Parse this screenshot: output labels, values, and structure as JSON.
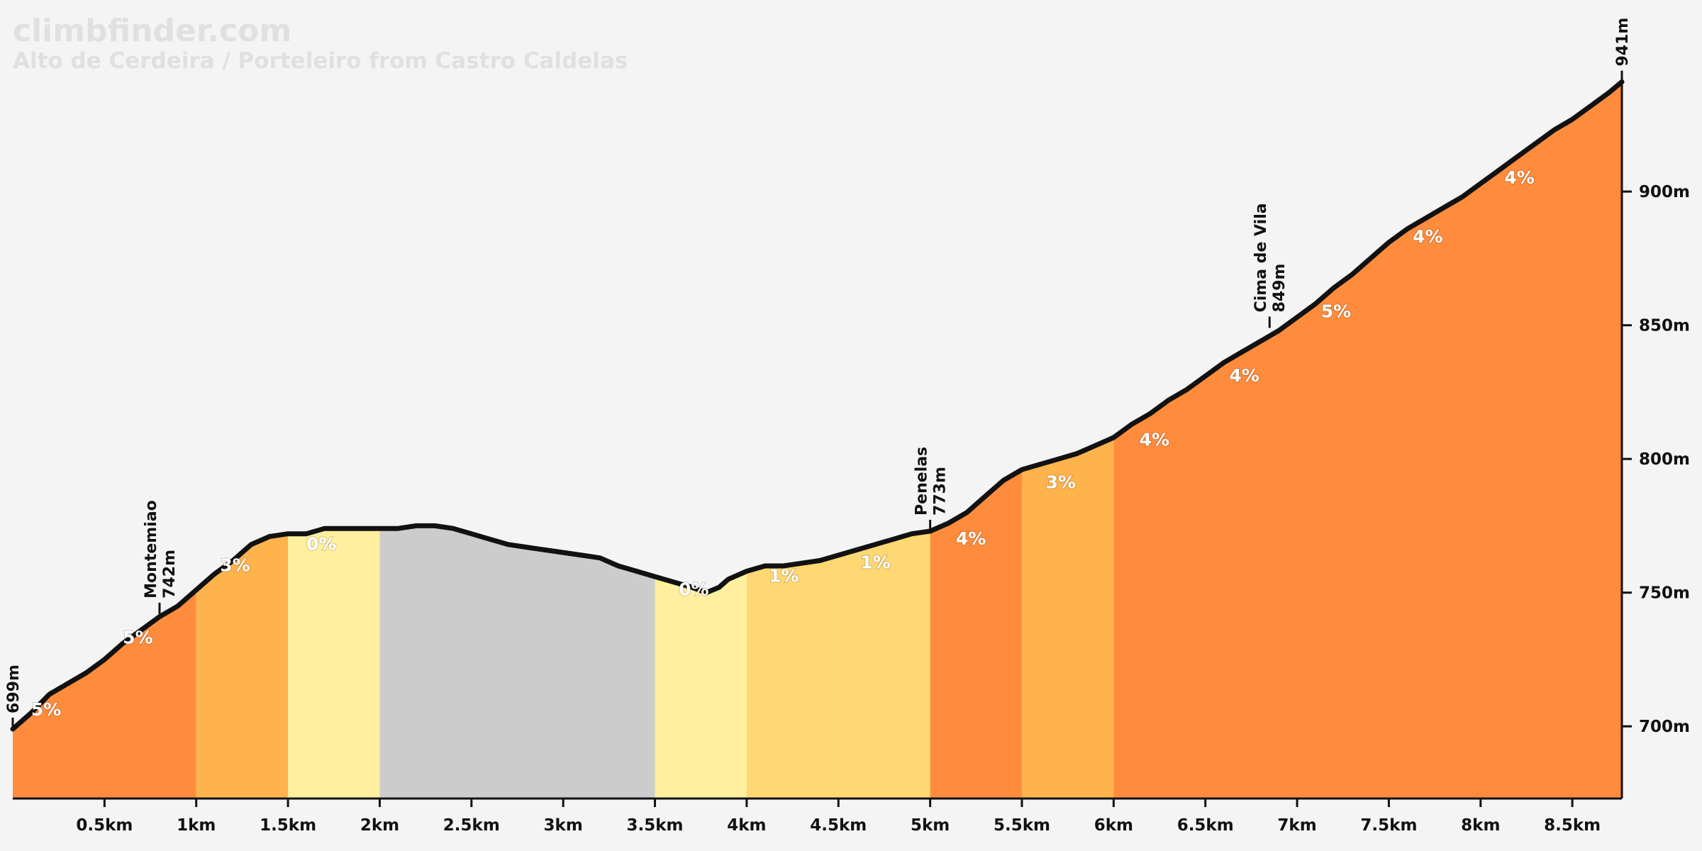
{
  "site": "climbfinder.com",
  "chart_data": {
    "type": "area",
    "title": "Alto de Cerdeira / Porteleiro from Castro Caldelas",
    "xlabel": "",
    "ylabel": "",
    "xlim": [
      0,
      8.77
    ],
    "ylim": [
      673,
      943
    ],
    "x_ticks": [
      {
        "value": 0.5,
        "label": "0.5km"
      },
      {
        "value": 1,
        "label": "1km"
      },
      {
        "value": 1.5,
        "label": "1.5km"
      },
      {
        "value": 2,
        "label": "2km"
      },
      {
        "value": 2.5,
        "label": "2.5km"
      },
      {
        "value": 3,
        "label": "3km"
      },
      {
        "value": 3.5,
        "label": "3.5km"
      },
      {
        "value": 4,
        "label": "4km"
      },
      {
        "value": 4.5,
        "label": "4.5km"
      },
      {
        "value": 5,
        "label": "5km"
      },
      {
        "value": 5.5,
        "label": "5.5km"
      },
      {
        "value": 6,
        "label": "6km"
      },
      {
        "value": 6.5,
        "label": "6.5km"
      },
      {
        "value": 7,
        "label": "7km"
      },
      {
        "value": 7.5,
        "label": "7.5km"
      },
      {
        "value": 8,
        "label": "8km"
      },
      {
        "value": 8.5,
        "label": "8.5km"
      }
    ],
    "y_ticks": [
      {
        "value": 700,
        "label": "700m"
      },
      {
        "value": 750,
        "label": "750m"
      },
      {
        "value": 800,
        "label": "800m"
      },
      {
        "value": 850,
        "label": "850m"
      },
      {
        "value": 900,
        "label": "900m"
      }
    ],
    "profile": {
      "x": [
        0,
        0.1,
        0.2,
        0.3,
        0.4,
        0.5,
        0.6,
        0.7,
        0.8,
        0.9,
        1.0,
        1.1,
        1.2,
        1.3,
        1.4,
        1.5,
        1.6,
        1.7,
        1.8,
        1.9,
        2.0,
        2.1,
        2.2,
        2.3,
        2.4,
        2.5,
        2.6,
        2.7,
        2.8,
        2.9,
        3.0,
        3.1,
        3.2,
        3.3,
        3.4,
        3.5,
        3.6,
        3.7,
        3.78,
        3.85,
        3.9,
        4.0,
        4.1,
        4.2,
        4.3,
        4.4,
        4.5,
        4.6,
        4.7,
        4.8,
        4.9,
        5.0,
        5.1,
        5.2,
        5.3,
        5.4,
        5.5,
        5.6,
        5.7,
        5.8,
        5.9,
        6.0,
        6.1,
        6.2,
        6.3,
        6.4,
        6.5,
        6.6,
        6.7,
        6.8,
        6.9,
        7.0,
        7.1,
        7.2,
        7.3,
        7.4,
        7.5,
        7.6,
        7.7,
        7.8,
        7.9,
        8.0,
        8.1,
        8.2,
        8.3,
        8.4,
        8.5,
        8.6,
        8.7,
        8.77
      ],
      "y": [
        699,
        705,
        712,
        716,
        720,
        725,
        731,
        736,
        741,
        745,
        751,
        757,
        762,
        768,
        771,
        772,
        772,
        774,
        774,
        774,
        774,
        774,
        775,
        775,
        774,
        772,
        770,
        768,
        767,
        766,
        765,
        764,
        763,
        760,
        758,
        756,
        754,
        752,
        750,
        752,
        755,
        758,
        760,
        760,
        761,
        762,
        764,
        766,
        768,
        770,
        772,
        773,
        776,
        780,
        786,
        792,
        796,
        798,
        800,
        802,
        805,
        808,
        813,
        817,
        822,
        826,
        831,
        836,
        840,
        844,
        848,
        853,
        858,
        864,
        869,
        875,
        881,
        886,
        890,
        894,
        898,
        903,
        908,
        913,
        918,
        923,
        927,
        932,
        937,
        941
      ]
    },
    "segments": [
      {
        "x0": 0,
        "x1": 1,
        "grade": "5%",
        "color": "#ff8c3c",
        "label_x": 0.1,
        "label_y": 704
      },
      {
        "x0": 0,
        "x1": 1,
        "grade": "5%",
        "color": "#ff8c3c",
        "label_x": 0.6,
        "label_y": 731
      },
      {
        "x0": 1,
        "x1": 1.5,
        "grade": "3%",
        "color": "#ffb34d",
        "label_x": 1.13,
        "label_y": 758
      },
      {
        "x0": 1.5,
        "x1": 2,
        "grade": "0%",
        "color": "#ffef9f",
        "label_x": 1.6,
        "label_y": 766
      },
      {
        "x0": 2,
        "x1": 3.5,
        "grade": "",
        "color": "#cccccc",
        "label_x": 2.7,
        "label_y": 750
      },
      {
        "x0": 3.5,
        "x1": 4,
        "grade": "0%",
        "color": "#ffef9f",
        "label_x": 3.63,
        "label_y": 749
      },
      {
        "x0": 4,
        "x1": 4.5,
        "grade": "1%",
        "color": "#ffd873",
        "label_x": 4.12,
        "label_y": 754
      },
      {
        "x0": 4.5,
        "x1": 5,
        "grade": "1%",
        "color": "#ffd873",
        "label_x": 4.62,
        "label_y": 759
      },
      {
        "x0": 5,
        "x1": 5.5,
        "grade": "4%",
        "color": "#ff8c3c",
        "label_x": 5.14,
        "label_y": 768
      },
      {
        "x0": 5.5,
        "x1": 6,
        "grade": "3%",
        "color": "#ffb34d",
        "label_x": 5.63,
        "label_y": 789
      },
      {
        "x0": 6,
        "x1": 8.77,
        "grade": "4%",
        "color": "#ff8c3c",
        "label_x": 6.14,
        "label_y": 805
      },
      {
        "x0": 6,
        "x1": 8.77,
        "grade": "4%",
        "color": "#ff8c3c",
        "label_x": 6.63,
        "label_y": 829
      },
      {
        "x0": 6,
        "x1": 8.77,
        "grade": "5%",
        "color": "#ff8c3c",
        "label_x": 7.13,
        "label_y": 853
      },
      {
        "x0": 6,
        "x1": 8.77,
        "grade": "4%",
        "color": "#ff8c3c",
        "label_x": 7.63,
        "label_y": 881
      },
      {
        "x0": 6,
        "x1": 8.77,
        "grade": "4%",
        "color": "#ff8c3c",
        "label_x": 8.13,
        "label_y": 903
      }
    ],
    "annotations": [
      {
        "x": 0,
        "y": 699,
        "lines": [
          "699m"
        ]
      },
      {
        "x": 0.8,
        "y": 742,
        "lines": [
          "Montemiao",
          "742m"
        ]
      },
      {
        "x": 5.0,
        "y": 773,
        "lines": [
          "Penelas",
          "773m"
        ]
      },
      {
        "x": 6.85,
        "y": 849,
        "lines": [
          "Cima de Vila",
          "849m"
        ]
      },
      {
        "x": 8.77,
        "y": 941,
        "lines": [
          "941m"
        ]
      }
    ],
    "colors": {
      "background": "#f4f4f4",
      "line": "#111111"
    }
  }
}
